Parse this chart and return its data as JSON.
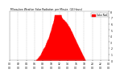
{
  "background_color": "#ffffff",
  "plot_bg_color": "#ffffff",
  "bar_color": "#ff0000",
  "grid_color": "#999999",
  "text_color": "#000000",
  "ylim": [
    0,
    8
  ],
  "xlim": [
    0,
    1440
  ],
  "legend_color": "#ff0000",
  "legend_label": "Solar Rad",
  "title_left": "Milwaukee Weather Solar Radiation",
  "title_right": "per Minute (24 Hours)"
}
